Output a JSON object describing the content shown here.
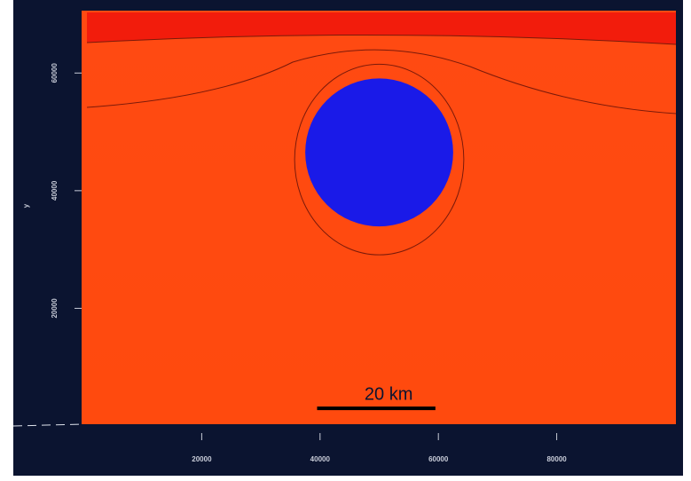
{
  "chart_data": {
    "type": "contour",
    "xlim": [
      0,
      100000
    ],
    "ylim": [
      0,
      70000
    ],
    "xticks": [
      20000,
      40000,
      60000,
      80000
    ],
    "yticks": [
      20000,
      40000,
      60000
    ],
    "ylabel": "y",
    "body": {
      "cx": 50000,
      "cy": 46500,
      "r": 12500,
      "color": "#1a1ae8"
    },
    "scale_bar": {
      "label": "20 km",
      "length": 20000,
      "x": 39500,
      "y": 3000
    }
  }
}
